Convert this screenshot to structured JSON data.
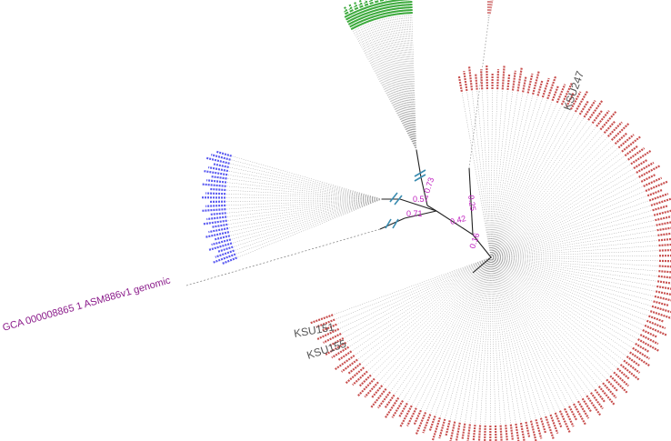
{
  "tree": {
    "outgroup_label": "GCA 000008865 1 ASM886v1 genomic",
    "highlighted_taxa": [
      "KSU247",
      "KSU151",
      "KSU155"
    ],
    "bootstrap_values": [
      "0.73",
      "0.57",
      "0.71",
      "0.42",
      "0.25",
      "0.16"
    ],
    "clades": [
      {
        "color": "#3daa3d",
        "leaf_count": 40
      },
      {
        "color": "#5a5af0",
        "leaf_count": 28
      },
      {
        "color": "#d98a8a",
        "leaf_count": 3
      },
      {
        "color": "#c8504f",
        "leaf_count": 150
      }
    ],
    "colors": {
      "branch": "#222222",
      "leader": "#9a9a9a",
      "bootstrap": "#c020c0",
      "break_mark": "#3a8cb0",
      "outgroup": "#8a1a8a",
      "callout": "#555555"
    }
  }
}
